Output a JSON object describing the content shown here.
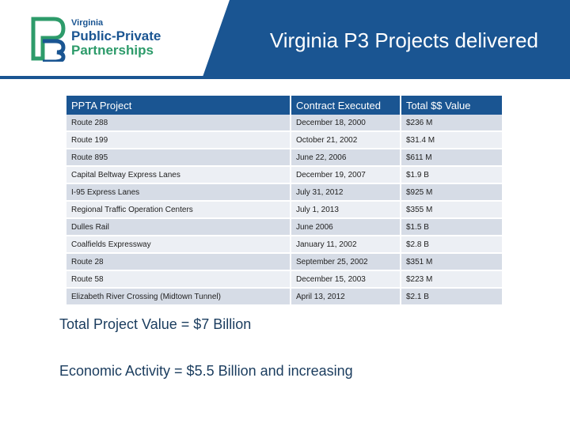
{
  "header": {
    "title": "Virginia P3 Projects delivered",
    "band_color": "#1a5592",
    "logo": {
      "line1": "Virginia",
      "line2": "Public-Private",
      "line3": "Partnerships",
      "mark_icon": "p3-logo-mark-icon"
    }
  },
  "table": {
    "headers": [
      "PPTA Project",
      "Contract Executed",
      "Total $$ Value"
    ],
    "rows": [
      {
        "project": "Route 288",
        "date": "December 18, 2000",
        "value": "$236 M"
      },
      {
        "project": "Route 199",
        "date": "October 21, 2002",
        "value": "$31.4 M"
      },
      {
        "project": "Route 895",
        "date": "June 22, 2006",
        "value": "$611 M"
      },
      {
        "project": "Capital  Beltway Express Lanes",
        "date": "December 19, 2007",
        "value": "$1.9 B"
      },
      {
        "project": "I-95 Express Lanes",
        "date": "July 31, 2012",
        "value": "$925 M"
      },
      {
        "project": "Regional Traffic Operation Centers",
        "date": "July 1, 2013",
        "value": "$355 M"
      },
      {
        "project": "Dulles Rail",
        "date": "June 2006",
        "value": "$1.5 B"
      },
      {
        "project": "Coalfields Expressway",
        "date": "January 11, 2002",
        "value": "$2.8 B"
      },
      {
        "project": "Route 28",
        "date": "September 25, 2002",
        "value": "$351 M"
      },
      {
        "project": "Route 58",
        "date": "December 15, 2003",
        "value": "$223 M"
      },
      {
        "project": "Elizabeth River Crossing (Midtown Tunnel)",
        "date": "April 13, 2012",
        "value": "$2.1 B"
      }
    ]
  },
  "summary": {
    "total": "Total Project Value = $7 Billion",
    "economic": "Economic Activity = $5.5 Billion and increasing"
  }
}
